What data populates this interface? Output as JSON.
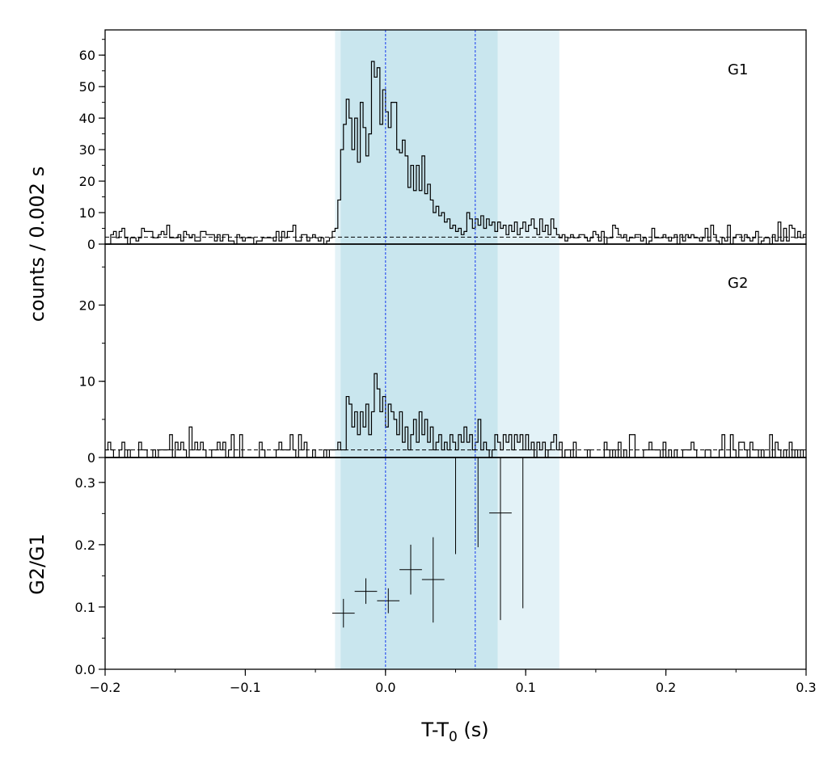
{
  "chart_data": {
    "type": "line",
    "xlabel_main": "T-T",
    "xlabel_sub": "0",
    "xlabel_unit": " (s)",
    "ylabel_counts": "counts /  0.002 s",
    "ylabel_ratio": "G2/G1",
    "xlim": [
      -0.2,
      0.3
    ],
    "x_ticks": [
      -0.2,
      -0.1,
      0.0,
      0.1,
      0.2,
      0.3
    ],
    "x_tick_labels": [
      "−0.2",
      "−0.1",
      "0.0",
      "0.1",
      "0.2",
      "0.3"
    ],
    "bin_width": 0.002,
    "shaded_regions": [
      {
        "x0": -0.036,
        "x1": 0.124,
        "color": "#e3f2f7"
      },
      {
        "x0": -0.032,
        "x1": 0.08,
        "color": "#c9e6ee"
      }
    ],
    "vertical_lines": [
      {
        "x": 0.0,
        "color": "#3355ee"
      },
      {
        "x": 0.064,
        "color": "#3355ee"
      }
    ],
    "panels": [
      {
        "name": "G1",
        "label": "G1",
        "ylim": [
          0,
          68
        ],
        "y_ticks": [
          0,
          10,
          20,
          30,
          40,
          50,
          60
        ],
        "y_tick_labels": [
          "0",
          "10",
          "20",
          "30",
          "40",
          "50",
          "60"
        ],
        "background_level": 2.2,
        "pulse": [
          {
            "t": -0.037,
            "v": 2
          },
          {
            "t": -0.036,
            "v": 5
          },
          {
            "t": -0.035,
            "v": 8
          },
          {
            "t": -0.034,
            "v": 14
          },
          {
            "t": -0.033,
            "v": 22
          },
          {
            "t": -0.032,
            "v": 30
          },
          {
            "t": -0.03,
            "v": 38
          },
          {
            "t": -0.028,
            "v": 46
          },
          {
            "t": -0.026,
            "v": 40
          },
          {
            "t": -0.024,
            "v": 30
          },
          {
            "t": -0.022,
            "v": 40
          },
          {
            "t": -0.02,
            "v": 26
          },
          {
            "t": -0.018,
            "v": 45
          },
          {
            "t": -0.016,
            "v": 37
          },
          {
            "t": -0.014,
            "v": 28
          },
          {
            "t": -0.012,
            "v": 35
          },
          {
            "t": -0.01,
            "v": 58
          },
          {
            "t": -0.008,
            "v": 53
          },
          {
            "t": -0.006,
            "v": 56
          },
          {
            "t": -0.004,
            "v": 38
          },
          {
            "t": -0.002,
            "v": 49
          },
          {
            "t": 0.0,
            "v": 42
          },
          {
            "t": 0.002,
            "v": 37
          },
          {
            "t": 0.004,
            "v": 45
          },
          {
            "t": 0.006,
            "v": 45
          },
          {
            "t": 0.008,
            "v": 30
          },
          {
            "t": 0.01,
            "v": 29
          },
          {
            "t": 0.012,
            "v": 33
          },
          {
            "t": 0.014,
            "v": 28
          },
          {
            "t": 0.016,
            "v": 18
          },
          {
            "t": 0.018,
            "v": 25
          },
          {
            "t": 0.02,
            "v": 17
          },
          {
            "t": 0.022,
            "v": 25
          },
          {
            "t": 0.024,
            "v": 17
          },
          {
            "t": 0.026,
            "v": 28
          },
          {
            "t": 0.028,
            "v": 16
          },
          {
            "t": 0.03,
            "v": 19
          },
          {
            "t": 0.032,
            "v": 14
          },
          {
            "t": 0.034,
            "v": 10
          },
          {
            "t": 0.036,
            "v": 12
          },
          {
            "t": 0.038,
            "v": 9
          },
          {
            "t": 0.04,
            "v": 10
          },
          {
            "t": 0.042,
            "v": 7
          },
          {
            "t": 0.044,
            "v": 8
          },
          {
            "t": 0.046,
            "v": 5
          },
          {
            "t": 0.048,
            "v": 6
          },
          {
            "t": 0.05,
            "v": 4
          },
          {
            "t": 0.052,
            "v": 5
          },
          {
            "t": 0.054,
            "v": 3
          },
          {
            "t": 0.056,
            "v": 4
          },
          {
            "t": 0.058,
            "v": 10
          },
          {
            "t": 0.06,
            "v": 8
          },
          {
            "t": 0.062,
            "v": 5
          },
          {
            "t": 0.064,
            "v": 8
          },
          {
            "t": 0.066,
            "v": 6
          },
          {
            "t": 0.068,
            "v": 9
          },
          {
            "t": 0.07,
            "v": 5
          },
          {
            "t": 0.072,
            "v": 8
          },
          {
            "t": 0.074,
            "v": 6
          },
          {
            "t": 0.076,
            "v": 7
          },
          {
            "t": 0.078,
            "v": 4
          },
          {
            "t": 0.08,
            "v": 7
          },
          {
            "t": 0.082,
            "v": 5
          },
          {
            "t": 0.084,
            "v": 6
          },
          {
            "t": 0.086,
            "v": 3
          },
          {
            "t": 0.088,
            "v": 6
          },
          {
            "t": 0.09,
            "v": 4
          },
          {
            "t": 0.092,
            "v": 7
          },
          {
            "t": 0.094,
            "v": 3
          },
          {
            "t": 0.096,
            "v": 5
          },
          {
            "t": 0.098,
            "v": 7
          },
          {
            "t": 0.1,
            "v": 4
          },
          {
            "t": 0.102,
            "v": 6
          },
          {
            "t": 0.104,
            "v": 8
          },
          {
            "t": 0.106,
            "v": 5
          },
          {
            "t": 0.108,
            "v": 3
          },
          {
            "t": 0.11,
            "v": 8
          },
          {
            "t": 0.112,
            "v": 4
          },
          {
            "t": 0.114,
            "v": 6
          },
          {
            "t": 0.116,
            "v": 3
          },
          {
            "t": 0.118,
            "v": 8
          },
          {
            "t": 0.12,
            "v": 5
          },
          {
            "t": 0.122,
            "v": 3
          },
          {
            "t": 0.124,
            "v": 2
          }
        ]
      },
      {
        "name": "G2",
        "label": "G2",
        "ylim": [
          0,
          28
        ],
        "y_ticks": [
          0,
          10,
          20
        ],
        "y_tick_labels": [
          "0",
          "10",
          "20"
        ],
        "background_level": 1.0,
        "pulse": [
          {
            "t": -0.034,
            "v": 2
          },
          {
            "t": -0.03,
            "v": 1
          },
          {
            "t": -0.028,
            "v": 8
          },
          {
            "t": -0.026,
            "v": 7
          },
          {
            "t": -0.024,
            "v": 4
          },
          {
            "t": -0.022,
            "v": 6
          },
          {
            "t": -0.02,
            "v": 3
          },
          {
            "t": -0.018,
            "v": 6
          },
          {
            "t": -0.016,
            "v": 4
          },
          {
            "t": -0.014,
            "v": 7
          },
          {
            "t": -0.012,
            "v": 3
          },
          {
            "t": -0.01,
            "v": 6
          },
          {
            "t": -0.008,
            "v": 11
          },
          {
            "t": -0.006,
            "v": 9
          },
          {
            "t": -0.004,
            "v": 6
          },
          {
            "t": -0.002,
            "v": 8
          },
          {
            "t": 0.0,
            "v": 4
          },
          {
            "t": 0.002,
            "v": 7
          },
          {
            "t": 0.004,
            "v": 6
          },
          {
            "t": 0.006,
            "v": 5
          },
          {
            "t": 0.008,
            "v": 3
          },
          {
            "t": 0.01,
            "v": 6
          },
          {
            "t": 0.012,
            "v": 2
          },
          {
            "t": 0.014,
            "v": 4
          },
          {
            "t": 0.016,
            "v": 1
          },
          {
            "t": 0.018,
            "v": 3
          },
          {
            "t": 0.02,
            "v": 5
          },
          {
            "t": 0.022,
            "v": 2
          },
          {
            "t": 0.024,
            "v": 6
          },
          {
            "t": 0.026,
            "v": 3
          },
          {
            "t": 0.028,
            "v": 5
          },
          {
            "t": 0.03,
            "v": 2
          },
          {
            "t": 0.032,
            "v": 4
          },
          {
            "t": 0.034,
            "v": 1
          },
          {
            "t": 0.036,
            "v": 2
          },
          {
            "t": 0.038,
            "v": 3
          },
          {
            "t": 0.04,
            "v": 1
          },
          {
            "t": 0.042,
            "v": 2
          },
          {
            "t": 0.044,
            "v": 1
          },
          {
            "t": 0.046,
            "v": 3
          },
          {
            "t": 0.048,
            "v": 2
          },
          {
            "t": 0.05,
            "v": 1
          },
          {
            "t": 0.052,
            "v": 3
          },
          {
            "t": 0.054,
            "v": 2
          },
          {
            "t": 0.056,
            "v": 4
          },
          {
            "t": 0.058,
            "v": 2
          },
          {
            "t": 0.06,
            "v": 3
          },
          {
            "t": 0.062,
            "v": 1
          },
          {
            "t": 0.064,
            "v": 2
          },
          {
            "t": 0.066,
            "v": 5
          },
          {
            "t": 0.068,
            "v": 1
          },
          {
            "t": 0.07,
            "v": 2
          },
          {
            "t": 0.072,
            "v": 1
          },
          {
            "t": 0.074,
            "v": 0
          },
          {
            "t": 0.076,
            "v": 1
          },
          {
            "t": 0.078,
            "v": 3
          },
          {
            "t": 0.08,
            "v": 2
          },
          {
            "t": 0.082,
            "v": 1
          },
          {
            "t": 0.084,
            "v": 3
          },
          {
            "t": 0.086,
            "v": 2
          },
          {
            "t": 0.088,
            "v": 3
          },
          {
            "t": 0.09,
            "v": 1
          },
          {
            "t": 0.092,
            "v": 3
          },
          {
            "t": 0.094,
            "v": 2
          },
          {
            "t": 0.096,
            "v": 3
          },
          {
            "t": 0.098,
            "v": 1
          },
          {
            "t": 0.1,
            "v": 3
          },
          {
            "t": 0.102,
            "v": 1
          },
          {
            "t": 0.104,
            "v": 2
          },
          {
            "t": 0.106,
            "v": 0
          },
          {
            "t": 0.108,
            "v": 2
          },
          {
            "t": 0.11,
            "v": 1
          },
          {
            "t": 0.112,
            "v": 2
          },
          {
            "t": 0.114,
            "v": 0
          },
          {
            "t": 0.116,
            "v": 1
          },
          {
            "t": 0.118,
            "v": 2
          },
          {
            "t": 0.12,
            "v": 3
          },
          {
            "t": 0.122,
            "v": 1
          }
        ]
      },
      {
        "name": "G2/G1",
        "label": "",
        "ylim": [
          0.0,
          0.34
        ],
        "y_ticks": [
          0.0,
          0.1,
          0.2,
          0.3
        ],
        "y_tick_labels": [
          "0.0",
          "0.1",
          "0.2",
          "0.3"
        ],
        "type": "errorbar",
        "points": [
          {
            "x": -0.03,
            "xerr": 0.008,
            "y": 0.09,
            "ylo": 0.067,
            "yhi": 0.113
          },
          {
            "x": -0.014,
            "xerr": 0.008,
            "y": 0.125,
            "ylo": 0.105,
            "yhi": 0.146
          },
          {
            "x": 0.002,
            "xerr": 0.008,
            "y": 0.11,
            "ylo": 0.09,
            "yhi": 0.13
          },
          {
            "x": 0.018,
            "xerr": 0.008,
            "y": 0.16,
            "ylo": 0.12,
            "yhi": 0.2
          },
          {
            "x": 0.034,
            "xerr": 0.008,
            "y": 0.144,
            "ylo": 0.075,
            "yhi": 0.212
          },
          {
            "x": 0.05,
            "xerr": 0.0,
            "y": 0.35,
            "ylo": 0.185,
            "yhi": 0.36
          },
          {
            "x": 0.066,
            "xerr": 0.0,
            "y": 0.35,
            "ylo": 0.196,
            "yhi": 0.36
          },
          {
            "x": 0.082,
            "xerr": 0.008,
            "y": 0.251,
            "ylo": 0.079,
            "yhi": 0.36
          },
          {
            "x": 0.098,
            "xerr": 0.0,
            "y": 0.35,
            "ylo": 0.098,
            "yhi": 0.36
          }
        ]
      }
    ]
  }
}
